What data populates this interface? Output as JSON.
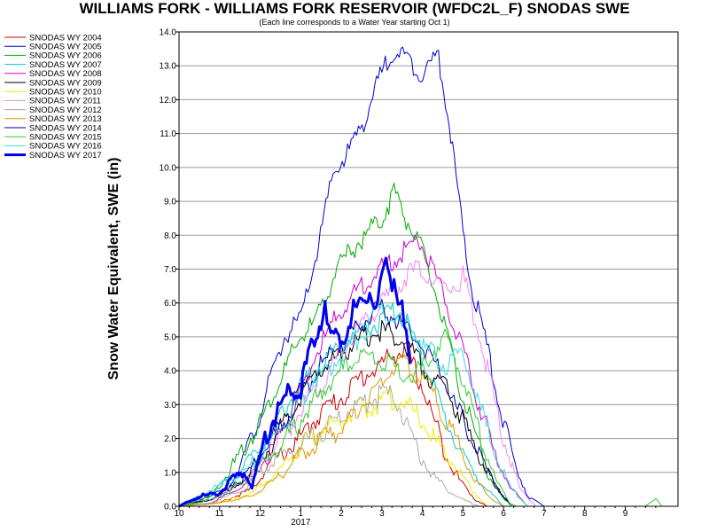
{
  "chart_data": {
    "type": "line",
    "title": "WILLIAMS FORK - WILLIAMS FORK RESERVOIR (WFDC2L_F) SNODAS SWE",
    "subtitle": "(Each line corresponds to a Water Year starting Oct 1)",
    "ylabel": "Snow Water Equivalent, SWE (in)",
    "xlabel": "",
    "x_unit": "month of water year (Oct 1 = 10)",
    "ylim": [
      0,
      14
    ],
    "y_ticks": [
      "0.0",
      "1.0",
      "2.0",
      "3.0",
      "4.0",
      "5.0",
      "6.0",
      "7.0",
      "8.0",
      "9.0",
      "10.0",
      "11.0",
      "12.0",
      "13.0",
      "14.0"
    ],
    "x_ticks": [
      "10",
      "11",
      "12",
      "1",
      "2",
      "3",
      "4",
      "5",
      "6",
      "7",
      "8",
      "9"
    ],
    "x_year_label": "2017",
    "grid": "horizontal",
    "legend_position": "left",
    "series": [
      {
        "name": "SNODAS WY 2004",
        "color": "#cc0000",
        "width": 1,
        "points": [
          [
            10.0,
            0
          ],
          [
            11.0,
            0.1
          ],
          [
            11.8,
            0.5
          ],
          [
            12.2,
            1.2
          ],
          [
            1.0,
            2.0
          ],
          [
            1.5,
            2.8
          ],
          [
            2.0,
            3.2
          ],
          [
            2.5,
            3.8
          ],
          [
            3.0,
            4.2
          ],
          [
            3.3,
            4.5
          ],
          [
            3.6,
            4.6
          ],
          [
            4.0,
            3.5
          ],
          [
            4.3,
            2.5
          ],
          [
            4.6,
            1.5
          ],
          [
            4.9,
            0.8
          ],
          [
            5.3,
            0.2
          ],
          [
            5.6,
            0
          ]
        ]
      },
      {
        "name": "SNODAS WY 2005",
        "color": "#0000cc",
        "width": 1,
        "points": [
          [
            10.0,
            0
          ],
          [
            10.5,
            0.2
          ],
          [
            11.2,
            0.5
          ],
          [
            11.8,
            2.0
          ],
          [
            12.2,
            3.5
          ],
          [
            12.6,
            5.0
          ],
          [
            1.0,
            5.5
          ],
          [
            1.4,
            7.5
          ],
          [
            1.8,
            9.8
          ],
          [
            2.2,
            10.5
          ],
          [
            2.6,
            11.5
          ],
          [
            3.0,
            12.8
          ],
          [
            3.3,
            13.5
          ],
          [
            3.6,
            13.2
          ],
          [
            4.0,
            12.8
          ],
          [
            4.4,
            13.3
          ],
          [
            4.7,
            11.0
          ],
          [
            5.0,
            8.0
          ],
          [
            5.2,
            6.5
          ],
          [
            5.5,
            5.2
          ],
          [
            5.8,
            3.5
          ],
          [
            6.2,
            1.5
          ],
          [
            6.6,
            0.3
          ],
          [
            7.0,
            0
          ]
        ]
      },
      {
        "name": "SNODAS WY 2006",
        "color": "#00aa00",
        "width": 1,
        "points": [
          [
            10.0,
            0
          ],
          [
            10.8,
            0.3
          ],
          [
            11.5,
            1.5
          ],
          [
            12.0,
            2.5
          ],
          [
            12.6,
            4.0
          ],
          [
            1.0,
            5.0
          ],
          [
            1.4,
            5.5
          ],
          [
            1.8,
            6.8
          ],
          [
            2.2,
            7.5
          ],
          [
            2.6,
            8.0
          ],
          [
            3.0,
            8.5
          ],
          [
            3.3,
            9.3
          ],
          [
            3.6,
            8.5
          ],
          [
            4.0,
            7.5
          ],
          [
            4.4,
            6.0
          ],
          [
            4.8,
            4.0
          ],
          [
            5.2,
            2.5
          ],
          [
            5.6,
            1.0
          ],
          [
            6.0,
            0.2
          ],
          [
            6.3,
            0
          ]
        ]
      },
      {
        "name": "SNODAS WY 2007",
        "color": "#00cccc",
        "width": 1,
        "points": [
          [
            10.0,
            0
          ],
          [
            10.8,
            0.4
          ],
          [
            11.5,
            1.0
          ],
          [
            12.0,
            1.8
          ],
          [
            12.5,
            2.8
          ],
          [
            1.0,
            3.5
          ],
          [
            1.5,
            4.2
          ],
          [
            2.0,
            4.8
          ],
          [
            2.5,
            5.2
          ],
          [
            3.0,
            5.5
          ],
          [
            3.4,
            5.8
          ],
          [
            3.8,
            5.0
          ],
          [
            4.2,
            3.8
          ],
          [
            4.6,
            2.5
          ],
          [
            5.0,
            1.5
          ],
          [
            5.5,
            0.6
          ],
          [
            6.0,
            0
          ]
        ]
      },
      {
        "name": "SNODAS WY 2008",
        "color": "#cc00cc",
        "width": 1,
        "points": [
          [
            10.0,
            0
          ],
          [
            10.8,
            0.1
          ],
          [
            11.6,
            0.6
          ],
          [
            12.2,
            1.5
          ],
          [
            12.8,
            2.8
          ],
          [
            1.2,
            4.0
          ],
          [
            1.6,
            5.0
          ],
          [
            2.0,
            5.8
          ],
          [
            2.5,
            6.5
          ],
          [
            3.0,
            7.0
          ],
          [
            3.5,
            7.5
          ],
          [
            3.9,
            7.9
          ],
          [
            4.2,
            7.2
          ],
          [
            4.6,
            6.0
          ],
          [
            5.0,
            4.5
          ],
          [
            5.4,
            3.0
          ],
          [
            5.8,
            1.5
          ],
          [
            6.2,
            0.5
          ],
          [
            6.6,
            0
          ]
        ]
      },
      {
        "name": "SNODAS WY 2009",
        "color": "#000000",
        "width": 1,
        "points": [
          [
            10.0,
            0
          ],
          [
            10.8,
            0.2
          ],
          [
            11.6,
            0.8
          ],
          [
            12.3,
            1.8
          ],
          [
            12.9,
            3.0
          ],
          [
            1.4,
            4.0
          ],
          [
            2.0,
            4.5
          ],
          [
            2.6,
            5.0
          ],
          [
            3.0,
            5.2
          ],
          [
            3.4,
            5.0
          ],
          [
            3.8,
            4.5
          ],
          [
            4.2,
            3.8
          ],
          [
            4.6,
            3.5
          ],
          [
            5.0,
            2.5
          ],
          [
            5.4,
            1.5
          ],
          [
            5.8,
            0.6
          ],
          [
            6.2,
            0
          ]
        ]
      },
      {
        "name": "SNODAS WY 2010",
        "color": "#eeee00",
        "width": 1,
        "points": [
          [
            10.0,
            0
          ],
          [
            11.0,
            0.1
          ],
          [
            11.8,
            0.4
          ],
          [
            12.4,
            1.0
          ],
          [
            1.0,
            1.8
          ],
          [
            1.6,
            2.3
          ],
          [
            2.2,
            2.7
          ],
          [
            2.8,
            3.0
          ],
          [
            3.2,
            3.2
          ],
          [
            3.6,
            3.0
          ],
          [
            4.0,
            2.5
          ],
          [
            4.4,
            1.8
          ],
          [
            4.8,
            1.2
          ],
          [
            5.2,
            0.5
          ],
          [
            5.6,
            0
          ]
        ]
      },
      {
        "name": "SNODAS WY 2011",
        "color": "#ee88ee",
        "width": 1,
        "points": [
          [
            10.0,
            0
          ],
          [
            10.8,
            0.2
          ],
          [
            11.6,
            0.7
          ],
          [
            12.2,
            1.5
          ],
          [
            12.8,
            2.5
          ],
          [
            1.4,
            3.5
          ],
          [
            2.0,
            4.5
          ],
          [
            2.6,
            5.5
          ],
          [
            3.2,
            6.2
          ],
          [
            3.6,
            6.8
          ],
          [
            4.0,
            7.0
          ],
          [
            4.4,
            6.5
          ],
          [
            4.8,
            6.5
          ],
          [
            5.0,
            6.8
          ],
          [
            5.3,
            5.5
          ],
          [
            5.6,
            4.0
          ],
          [
            6.0,
            2.0
          ],
          [
            6.4,
            0.5
          ],
          [
            6.8,
            0
          ]
        ]
      },
      {
        "name": "SNODAS WY 2012",
        "color": "#aaaaaa",
        "width": 1,
        "points": [
          [
            10.0,
            0
          ],
          [
            10.8,
            0.1
          ],
          [
            11.6,
            0.5
          ],
          [
            12.2,
            1.2
          ],
          [
            1.0,
            1.8
          ],
          [
            1.6,
            2.3
          ],
          [
            2.2,
            2.8
          ],
          [
            2.8,
            3.2
          ],
          [
            3.2,
            3.3
          ],
          [
            3.5,
            2.8
          ],
          [
            3.8,
            1.8
          ],
          [
            4.2,
            1.0
          ],
          [
            4.6,
            0.5
          ],
          [
            5.0,
            0.2
          ],
          [
            5.4,
            0
          ]
        ]
      },
      {
        "name": "SNODAS WY 2013",
        "color": "#dd9900",
        "width": 1,
        "points": [
          [
            10.0,
            0
          ],
          [
            11.0,
            0.1
          ],
          [
            11.8,
            0.3
          ],
          [
            12.4,
            0.8
          ],
          [
            1.0,
            1.5
          ],
          [
            1.6,
            2.0
          ],
          [
            2.2,
            2.5
          ],
          [
            2.8,
            3.5
          ],
          [
            3.2,
            4.0
          ],
          [
            3.6,
            4.2
          ],
          [
            4.0,
            3.8
          ],
          [
            4.4,
            3.0
          ],
          [
            4.8,
            2.0
          ],
          [
            5.2,
            1.0
          ],
          [
            5.6,
            0.3
          ],
          [
            6.0,
            0
          ]
        ]
      },
      {
        "name": "SNODAS WY 2014",
        "color": "#000099",
        "width": 1,
        "points": [
          [
            10.0,
            0
          ],
          [
            10.8,
            0.2
          ],
          [
            11.6,
            0.8
          ],
          [
            12.2,
            1.8
          ],
          [
            12.8,
            3.0
          ],
          [
            1.4,
            4.0
          ],
          [
            2.0,
            4.8
          ],
          [
            2.6,
            5.5
          ],
          [
            3.0,
            5.8
          ],
          [
            3.4,
            5.5
          ],
          [
            3.8,
            5.0
          ],
          [
            4.2,
            4.5
          ],
          [
            4.6,
            3.5
          ],
          [
            5.0,
            2.5
          ],
          [
            5.4,
            1.5
          ],
          [
            5.8,
            0.6
          ],
          [
            6.2,
            0
          ]
        ]
      },
      {
        "name": "SNODAS WY 2015",
        "color": "#33cc33",
        "width": 1,
        "points": [
          [
            10.0,
            0
          ],
          [
            10.8,
            0.2
          ],
          [
            11.6,
            0.7
          ],
          [
            12.2,
            1.4
          ],
          [
            12.8,
            2.2
          ],
          [
            1.4,
            3.2
          ],
          [
            2.0,
            4.0
          ],
          [
            2.6,
            4.5
          ],
          [
            3.0,
            4.3
          ],
          [
            3.4,
            4.0
          ],
          [
            3.8,
            3.8
          ],
          [
            4.2,
            4.5
          ],
          [
            4.6,
            5.0
          ],
          [
            5.0,
            3.8
          ],
          [
            5.4,
            2.2
          ],
          [
            5.8,
            0.8
          ],
          [
            6.2,
            0
          ],
          [
            9.5,
            0
          ],
          [
            9.75,
            0.25
          ],
          [
            9.9,
            0
          ]
        ]
      },
      {
        "name": "SNODAS WY 2016",
        "color": "#33dddd",
        "width": 1,
        "points": [
          [
            10.0,
            0
          ],
          [
            10.8,
            0.5
          ],
          [
            11.6,
            1.0
          ],
          [
            12.2,
            1.8
          ],
          [
            12.8,
            2.8
          ],
          [
            1.4,
            3.8
          ],
          [
            2.0,
            4.5
          ],
          [
            2.6,
            5.2
          ],
          [
            3.0,
            5.8
          ],
          [
            3.4,
            5.5
          ],
          [
            3.8,
            5.0
          ],
          [
            4.2,
            4.5
          ],
          [
            4.6,
            4.2
          ],
          [
            5.0,
            4.5
          ],
          [
            5.4,
            3.0
          ],
          [
            5.8,
            1.5
          ],
          [
            6.2,
            0.5
          ],
          [
            6.6,
            0
          ]
        ]
      },
      {
        "name": "SNODAS WY 2017",
        "color": "#0000ee",
        "width": 3,
        "points": [
          [
            10.0,
            0
          ],
          [
            10.5,
            0.3
          ],
          [
            11.0,
            0.4
          ],
          [
            11.3,
            0.8
          ],
          [
            11.6,
            1.0
          ],
          [
            11.8,
            0.6
          ],
          [
            12.0,
            1.5
          ],
          [
            12.2,
            2.2
          ],
          [
            12.4,
            2.8
          ],
          [
            12.6,
            3.2
          ],
          [
            12.8,
            3.4
          ],
          [
            1.0,
            3.5
          ],
          [
            1.1,
            4.0
          ],
          [
            1.3,
            4.8
          ],
          [
            1.5,
            5.5
          ],
          [
            1.6,
            6.2
          ],
          [
            1.7,
            5.0
          ],
          [
            1.9,
            4.9
          ],
          [
            2.1,
            5.2
          ],
          [
            2.3,
            5.8
          ],
          [
            2.5,
            6.0
          ],
          [
            2.7,
            6.3
          ],
          [
            2.9,
            6.0
          ],
          [
            3.0,
            6.6
          ],
          [
            3.1,
            7.1
          ],
          [
            3.2,
            6.5
          ],
          [
            3.3,
            6.8
          ],
          [
            3.4,
            6.3
          ],
          [
            3.5,
            6.2
          ],
          [
            3.6,
            5.0
          ],
          [
            3.7,
            4.2
          ]
        ]
      }
    ]
  }
}
